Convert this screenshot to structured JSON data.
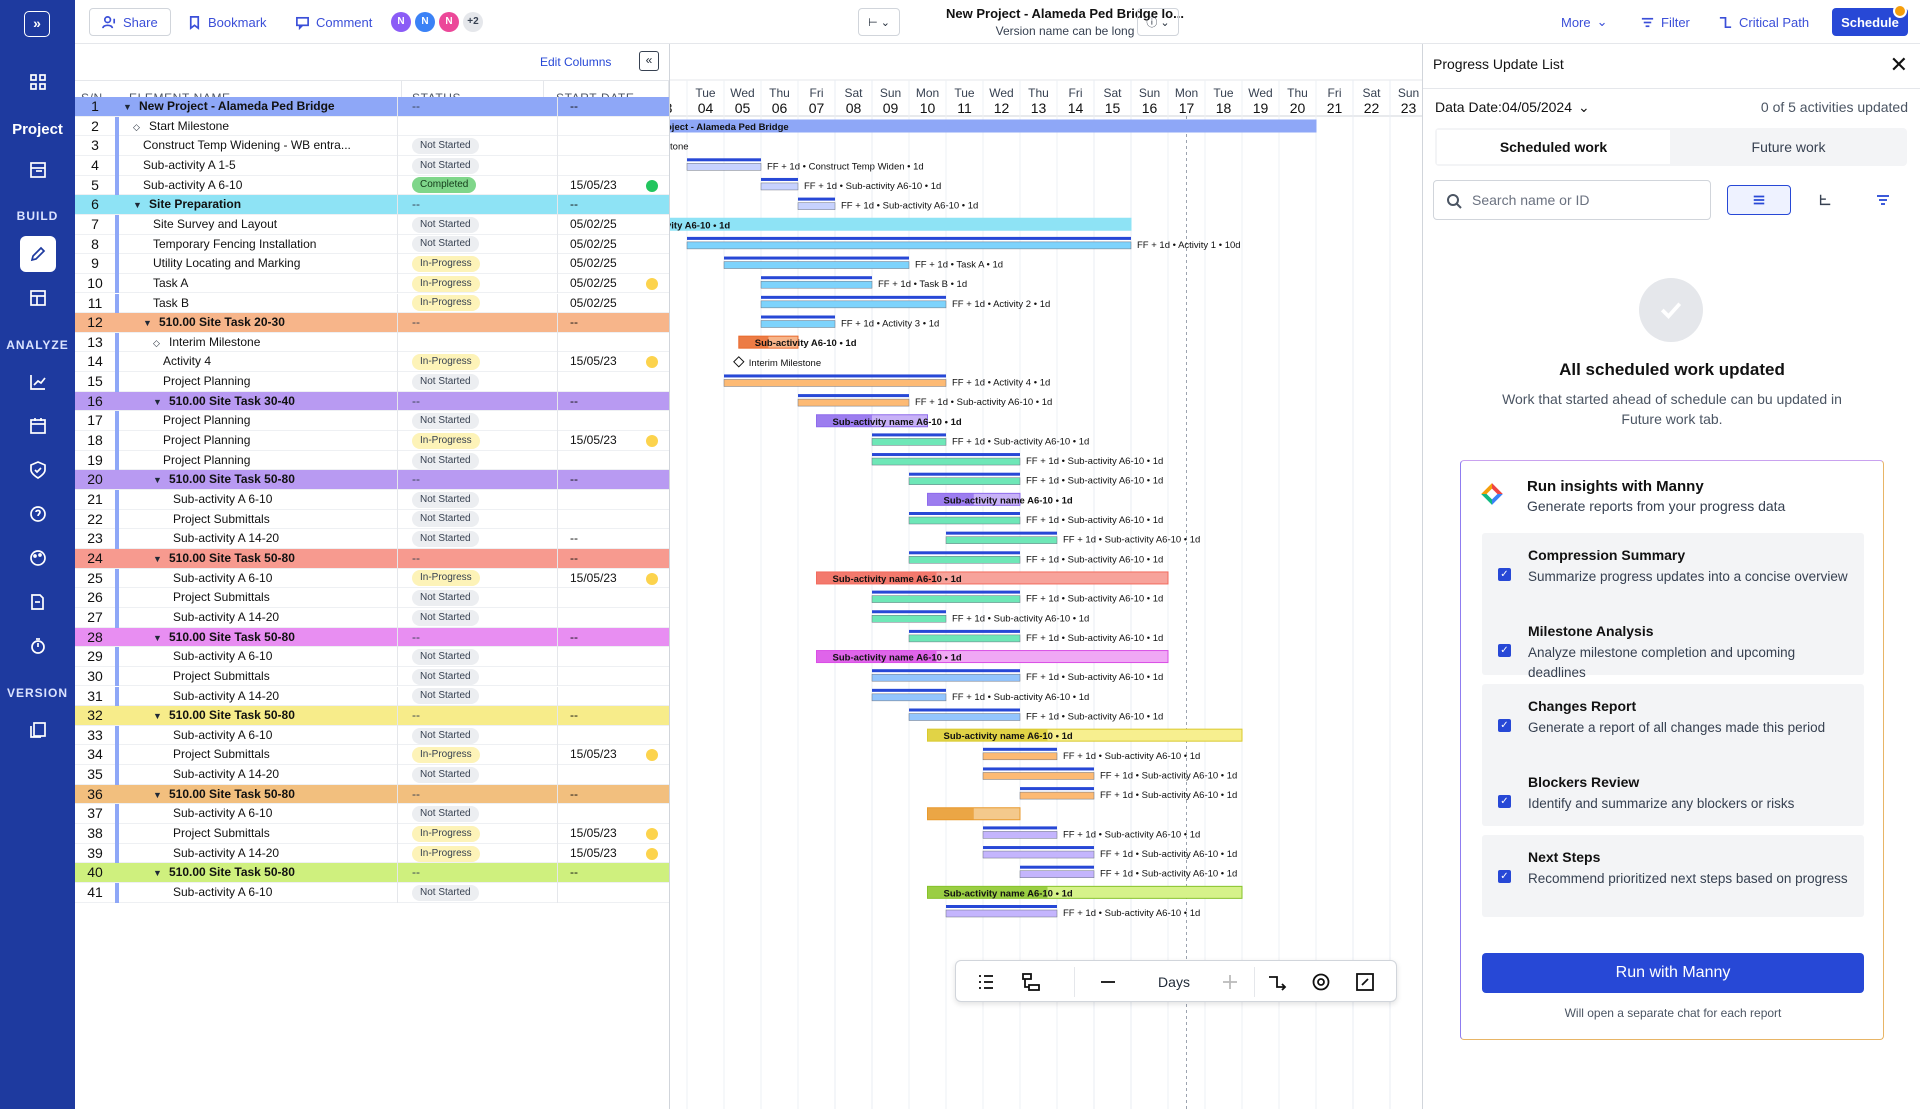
{
  "nav": {
    "project_label": "Project",
    "sections": {
      "build": "BUILD",
      "analyze": "ANALYZE",
      "version": "VERSION"
    }
  },
  "topbar": {
    "share": "Share",
    "bookmark": "Bookmark",
    "comment": "Comment",
    "avatars": [
      "N",
      "N",
      "N"
    ],
    "avatars_more": "+2",
    "project_title": "New Project - Alameda Ped Bridge lo...",
    "version_name": "Version name can be long",
    "more": "More",
    "filter": "Filter",
    "critical_path": "Critical Path",
    "schedule": "Schedule"
  },
  "table": {
    "edit_columns": "Edit Columns",
    "headers": {
      "sn": "S/N",
      "name": "ELEMENT NAME",
      "status": "STATUS",
      "start": "START DATE"
    },
    "rows": [
      {
        "sn": "1",
        "name": "New Project - Alameda Ped Bridge",
        "status": "--",
        "start": "--"
      },
      {
        "sn": "2",
        "name": "Start Milestone",
        "status": "",
        "start": ""
      },
      {
        "sn": "3",
        "name": "Construct Temp Widening - WB entra...",
        "status": "Not Started",
        "start": ""
      },
      {
        "sn": "4",
        "name": "Sub-activity A 1-5",
        "status": "Not Started",
        "start": ""
      },
      {
        "sn": "5",
        "name": "Sub-activity A 6-10",
        "status": "Completed",
        "start": "15/05/23"
      },
      {
        "sn": "6",
        "name": "Site Preparation",
        "status": "--",
        "start": "--"
      },
      {
        "sn": "7",
        "name": "Site Survey and Layout",
        "status": "Not Started",
        "start": "05/02/25"
      },
      {
        "sn": "8",
        "name": "Temporary Fencing Installation",
        "status": "Not Started",
        "start": "05/02/25"
      },
      {
        "sn": "9",
        "name": "Utility Locating and Marking",
        "status": "In-Progress",
        "start": "05/02/25"
      },
      {
        "sn": "10",
        "name": "Task A",
        "status": "In-Progress",
        "start": "05/02/25"
      },
      {
        "sn": "11",
        "name": "Task B",
        "status": "In-Progress",
        "start": "05/02/25"
      },
      {
        "sn": "12",
        "name": "510.00 Site Task 20-30",
        "status": "--",
        "start": "--"
      },
      {
        "sn": "13",
        "name": "Interim Milestone",
        "status": "",
        "start": ""
      },
      {
        "sn": "14",
        "name": "Activity 4",
        "status": "In-Progress",
        "start": "15/05/23"
      },
      {
        "sn": "15",
        "name": "Project Planning",
        "status": "Not Started",
        "start": ""
      },
      {
        "sn": "16",
        "name": "510.00 Site Task 30-40",
        "status": "--",
        "start": "--"
      },
      {
        "sn": "17",
        "name": "Project Planning",
        "status": "Not Started",
        "start": ""
      },
      {
        "sn": "18",
        "name": "Project Planning",
        "status": "In-Progress",
        "start": "15/05/23"
      },
      {
        "sn": "19",
        "name": "Project Planning",
        "status": "Not Started",
        "start": ""
      },
      {
        "sn": "20",
        "name": "510.00 Site Task 50-80",
        "status": "--",
        "start": "--"
      },
      {
        "sn": "21",
        "name": "Sub-activity A 6-10",
        "status": "Not Started",
        "start": ""
      },
      {
        "sn": "22",
        "name": "Project Submittals",
        "status": "Not Started",
        "start": ""
      },
      {
        "sn": "23",
        "name": "Sub-activity A 14-20",
        "status": "Not Started",
        "start": "--"
      },
      {
        "sn": "24",
        "name": "510.00 Site Task 50-80",
        "status": "--",
        "start": "--"
      },
      {
        "sn": "25",
        "name": "Sub-activity A 6-10",
        "status": "In-Progress",
        "start": "15/05/23"
      },
      {
        "sn": "26",
        "name": "Project Submittals",
        "status": "Not Started",
        "start": ""
      },
      {
        "sn": "27",
        "name": "Sub-activity A 14-20",
        "status": "Not Started",
        "start": ""
      },
      {
        "sn": "28",
        "name": "510.00 Site Task 50-80",
        "status": "--",
        "start": "--"
      },
      {
        "sn": "29",
        "name": "Sub-activity A 6-10",
        "status": "Not Started",
        "start": ""
      },
      {
        "sn": "30",
        "name": "Project Submittals",
        "status": "Not Started",
        "start": ""
      },
      {
        "sn": "31",
        "name": "Sub-activity A 14-20",
        "status": "Not Started",
        "start": ""
      },
      {
        "sn": "32",
        "name": "510.00 Site Task 50-80",
        "status": "--",
        "start": "--"
      },
      {
        "sn": "33",
        "name": "Sub-activity A 6-10",
        "status": "Not Started",
        "start": ""
      },
      {
        "sn": "34",
        "name": "Project Submittals",
        "status": "In-Progress",
        "start": "15/05/23"
      },
      {
        "sn": "35",
        "name": "Sub-activity A 14-20",
        "status": "Not Started",
        "start": ""
      },
      {
        "sn": "36",
        "name": "510.00 Site Task 50-80",
        "status": "--",
        "start": "--"
      },
      {
        "sn": "37",
        "name": "Sub-activity A 6-10",
        "status": "Not Started",
        "start": ""
      },
      {
        "sn": "38",
        "name": "Project Submittals",
        "status": "In-Progress",
        "start": "15/05/23"
      },
      {
        "sn": "39",
        "name": "Sub-activity A 14-20",
        "status": "In-Progress",
        "start": "15/05/23"
      },
      {
        "sn": "40",
        "name": "510.00 Site Task 50-80",
        "status": "--",
        "start": "--"
      },
      {
        "sn": "41",
        "name": "Sub-activity A 6-10",
        "status": "Not Started",
        "start": ""
      }
    ]
  },
  "gantt": {
    "dates": [
      {
        "dow": "",
        "d": "3"
      },
      {
        "dow": "Tue",
        "d": "04"
      },
      {
        "dow": "Wed",
        "d": "05"
      },
      {
        "dow": "Thu",
        "d": "06"
      },
      {
        "dow": "Fri",
        "d": "07"
      },
      {
        "dow": "Sat",
        "d": "08"
      },
      {
        "dow": "Sun",
        "d": "09"
      },
      {
        "dow": "Mon",
        "d": "10"
      },
      {
        "dow": "Tue",
        "d": "11"
      },
      {
        "dow": "Wed",
        "d": "12"
      },
      {
        "dow": "Thu",
        "d": "13"
      },
      {
        "dow": "Fri",
        "d": "14"
      },
      {
        "dow": "Sat",
        "d": "15"
      },
      {
        "dow": "Sun",
        "d": "16"
      },
      {
        "dow": "Mon",
        "d": "17"
      },
      {
        "dow": "Tue",
        "d": "18"
      },
      {
        "dow": "Wed",
        "d": "19"
      },
      {
        "dow": "Thu",
        "d": "20"
      },
      {
        "dow": "Fri",
        "d": "21"
      },
      {
        "dow": "Sat",
        "d": "22"
      },
      {
        "dow": "Sun",
        "d": "23"
      }
    ],
    "labels": [
      "oject - Alameda Ped Bridge",
      "estone",
      "FF + 1d • Construct Temp Widen • 1d",
      "FF + 1d • Sub-activity A6-10 • 1d",
      "FF + 1d • Sub-activity A6-10 • 1d",
      "vity A6-10 • 1d",
      "FF + 1d • Activity 1 • 10d",
      "FF + 1d • Task A • 1d",
      "FF + 1d • Task B • 1d",
      "FF + 1d • Activity 2 • 1d",
      "FF + 1d • Activity 3 • 1d",
      "Sub-activity A6-10 • 1d",
      "Interim Milestone",
      "FF + 1d • Activity 4 • 1d",
      "FF + 1d • Sub-activity A6-10 • 1d",
      "Sub-activity name A6-10 • 1d",
      "FF + 1d • Sub-activity A6-10 • 1d",
      "FF + 1d • Sub-activity A6-10 • 1d",
      "FF + 1d • Sub-activity A6-10 • 1d",
      "Sub-activity name A6-10 • 1d",
      "FF + 1d • Sub-activity A6-10 • 1d",
      "FF + 1d • Sub-activity A6-10 • 1d",
      "FF + 1d • Sub-activity A6-10 • 1d",
      "Sub-activity name A6-10 • 1d",
      "FF + 1d • Sub-activity A6-10 • 1d",
      "FF + 1d • Sub-activity A6-10 • 1d",
      "FF + 1d • Sub-activity A6-10 • 1d",
      "Sub-activity name A6-10 • 1d",
      "FF + 1d • Sub-activity A6-10 • 1d",
      "FF + 1d • Sub-activity A6-10 • 1d",
      "FF + 1d • Sub-activity A6-10 • 1d",
      "Sub-activity name A6-10 • 1d",
      "FF + 1d • Sub-activity A6-10 • 1d",
      "FF + 1d • Sub-activity A6-10 • 1d",
      "FF + 1d • Sub-activity A6-10 • 1d",
      "",
      "FF + 1d • Sub-activity A6-10 • 1d",
      "FF + 1d • Sub-activity A6-10 • 1d",
      "FF + 1d • Sub-activity A6-10 • 1d",
      "Sub-activity name A6-10 • 1d",
      "FF + 1d • Sub-activity A6-10 • 1d"
    ],
    "toolbar": {
      "scale": "Days"
    }
  },
  "panel": {
    "title": "Progress Update List",
    "data_date": "Data Date:04/05/2024",
    "count": "0 of 5 activities updated",
    "tabs": [
      "Scheduled work",
      "Future work"
    ],
    "search_placeholder": "Search name or ID",
    "empty_title": "All scheduled work updated",
    "empty_desc": "Work that started ahead of schedule can bu updated in Future work tab.",
    "manny": {
      "title": "Run insights with Manny",
      "subtitle": "Generate reports from your progress data",
      "items": [
        {
          "title": "Compression Summary",
          "desc": "Summarize progress updates into a concise overview"
        },
        {
          "title": "Milestone Analysis",
          "desc": "Analyze milestone completion and upcoming deadlines"
        },
        {
          "title": "Changes Report",
          "desc": "Generate a report of all changes made this period"
        },
        {
          "title": "Blockers Review",
          "desc": "Identify and summarize any blockers or risks"
        },
        {
          "title": "Next Steps",
          "desc": "Recommend prioritized next steps based on progress"
        }
      ],
      "run": "Run with Manny",
      "note": "Will open a separate chat for each report"
    }
  },
  "colors": {
    "nav": "#1e3a9f",
    "accent": "#2748d6"
  }
}
